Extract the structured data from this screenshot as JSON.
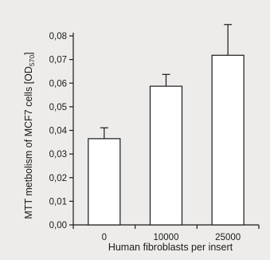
{
  "chart_data": {
    "type": "bar",
    "categories": [
      "0",
      "10000",
      "25000"
    ],
    "values": [
      0.0365,
      0.0587,
      0.0718
    ],
    "error_upper": [
      0.0411,
      0.0637,
      0.0848
    ],
    "xlabel": "Human fibroblasts per insert",
    "ylabel_main": "MTT metbolism of MCF7 cells [OD",
    "ylabel_sub": "570",
    "ylabel_close": "]",
    "ylim": [
      0,
      0.08
    ],
    "yticks": [
      "0,00",
      "0,01",
      "0,02",
      "0,03",
      "0,04",
      "0,05",
      "0,06",
      "0,07",
      "0,08"
    ],
    "grid": false,
    "legend": "none",
    "colors": {
      "bar_fill": "#ffffff",
      "bar_stroke": "#1a1a1a",
      "background": "#edecea"
    }
  }
}
